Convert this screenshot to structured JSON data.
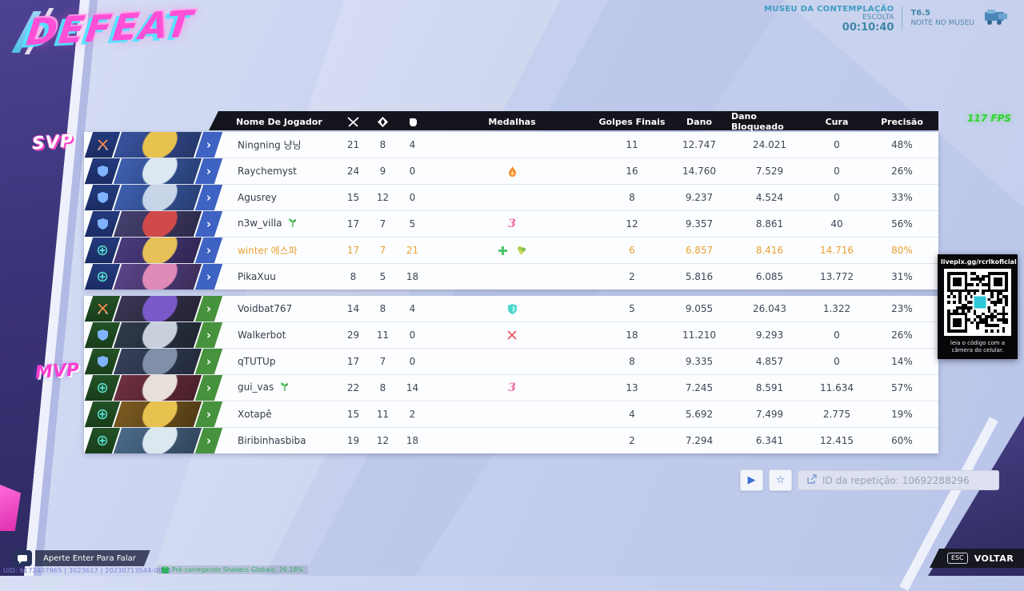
{
  "result_label": "DEFEAT",
  "hud": {
    "map_name": "MUSEU DA CONTEMPLAÇÃO",
    "mode": "ESCOLTA",
    "match_time": "00:10:40",
    "round": "T6.5",
    "round_name": "NOITE NO MUSEU",
    "fps": "117 FPS"
  },
  "awards": {
    "svp": "SVP",
    "mvp": "MVP"
  },
  "scoreboard": {
    "headers": {
      "player": "Nome De Jogador",
      "kills_icon": "crossed-swords",
      "deaths_icon": "broken-diamond",
      "assists_icon": "assist-hand",
      "medals": "Medalhas",
      "final_hits": "Golpes Finais",
      "damage": "Dano",
      "damage_blocked": "Dano Bloqueado",
      "healing": "Cura",
      "accuracy": "Precisão"
    },
    "teams": [
      {
        "id": "ally",
        "color": "blue",
        "rows": [
          {
            "name": "Ningning 냥닝",
            "has_seedling": false,
            "role": "duelist",
            "portrait": [
              "#38539e",
              "#e8c24f"
            ],
            "highlight": false,
            "medals": [],
            "stats": {
              "kills": "21",
              "deaths": "8",
              "assists": "4",
              "final_hits": "11",
              "damage": "12.747",
              "damage_blocked": "24.021",
              "healing": "0",
              "accuracy": "48%"
            }
          },
          {
            "name": "Raychemyst",
            "has_seedling": false,
            "role": "vanguard",
            "portrait": [
              "#3d5fae",
              "#dbe8f2"
            ],
            "highlight": false,
            "medals": [
              {
                "type": "flame"
              }
            ],
            "stats": {
              "kills": "24",
              "deaths": "9",
              "assists": "0",
              "final_hits": "16",
              "damage": "14.760",
              "damage_blocked": "7.529",
              "healing": "0",
              "accuracy": "26%"
            }
          },
          {
            "name": "Agusrey",
            "has_seedling": false,
            "role": "vanguard",
            "portrait": [
              "#3d5fae",
              "#c8d4e8"
            ],
            "highlight": false,
            "medals": [],
            "stats": {
              "kills": "15",
              "deaths": "12",
              "assists": "0",
              "final_hits": "8",
              "damage": "9.237",
              "damage_blocked": "4.524",
              "healing": "0",
              "accuracy": "33%"
            }
          },
          {
            "name": "n3w_villa",
            "has_seedling": true,
            "role": "vanguard",
            "portrait": [
              "#44406e",
              "#d04a4a"
            ],
            "highlight": false,
            "medals": [
              {
                "type": "pink-three",
                "text": "3"
              }
            ],
            "stats": {
              "kills": "17",
              "deaths": "7",
              "assists": "5",
              "final_hits": "12",
              "damage": "9.357",
              "damage_blocked": "8.861",
              "healing": "40",
              "accuracy": "56%"
            }
          },
          {
            "name": "winter 에스파",
            "has_seedling": false,
            "role": "strategist",
            "portrait": [
              "#4a3a7e",
              "#e8c05a"
            ],
            "highlight": true,
            "medals": [
              {
                "type": "green-cross"
              },
              {
                "type": "clover"
              }
            ],
            "stats": {
              "kills": "17",
              "deaths": "7",
              "assists": "21",
              "final_hits": "6",
              "damage": "6.857",
              "damage_blocked": "8.416",
              "healing": "14.716",
              "accuracy": "80%"
            }
          },
          {
            "name": "PikaXuu",
            "has_seedling": false,
            "role": "strategist",
            "portrait": [
              "#5a4488",
              "#e08ab8"
            ],
            "highlight": false,
            "medals": [],
            "stats": {
              "kills": "8",
              "deaths": "5",
              "assists": "18",
              "final_hits": "2",
              "damage": "5.816",
              "damage_blocked": "6.085",
              "healing": "13.772",
              "accuracy": "31%"
            }
          }
        ]
      },
      {
        "id": "enemy",
        "color": "green",
        "rows": [
          {
            "name": "Voidbat767",
            "has_seedling": false,
            "role": "duelist",
            "portrait": [
              "#3a3552",
              "#7a5ac8"
            ],
            "highlight": false,
            "medals": [
              {
                "type": "shield"
              }
            ],
            "stats": {
              "kills": "14",
              "deaths": "8",
              "assists": "4",
              "final_hits": "5",
              "damage": "9.055",
              "damage_blocked": "26.043",
              "healing": "1.322",
              "accuracy": "23%"
            }
          },
          {
            "name": "Walkerbot",
            "has_seedling": false,
            "role": "vanguard",
            "portrait": [
              "#2f3a4a",
              "#c8d0dc"
            ],
            "highlight": false,
            "medals": [
              {
                "type": "red-swords"
              }
            ],
            "stats": {
              "kills": "29",
              "deaths": "11",
              "assists": "0",
              "final_hits": "18",
              "damage": "11.210",
              "damage_blocked": "9.293",
              "healing": "0",
              "accuracy": "26%"
            }
          },
          {
            "name": "qTUTUp",
            "has_seedling": false,
            "role": "vanguard",
            "portrait": [
              "#35405a",
              "#8090a8"
            ],
            "highlight": false,
            "medals": [],
            "stats": {
              "kills": "17",
              "deaths": "7",
              "assists": "0",
              "final_hits": "8",
              "damage": "9.335",
              "damage_blocked": "4.857",
              "healing": "0",
              "accuracy": "14%"
            }
          },
          {
            "name": "gui_vas",
            "has_seedling": true,
            "role": "strategist",
            "portrait": [
              "#6e3040",
              "#e8e0d8"
            ],
            "highlight": false,
            "medals": [
              {
                "type": "pink-three",
                "text": "3"
              }
            ],
            "stats": {
              "kills": "22",
              "deaths": "8",
              "assists": "14",
              "final_hits": "13",
              "damage": "7.245",
              "damage_blocked": "8.591",
              "healing": "11.634",
              "accuracy": "57%"
            }
          },
          {
            "name": "Xotapê",
            "has_seedling": false,
            "role": "strategist",
            "portrait": [
              "#7a5a20",
              "#e8c24f"
            ],
            "highlight": false,
            "medals": [],
            "stats": {
              "kills": "15",
              "deaths": "11",
              "assists": "2",
              "final_hits": "4",
              "damage": "5.692",
              "damage_blocked": "7.499",
              "healing": "2.775",
              "accuracy": "19%"
            }
          },
          {
            "name": "Biribinhasbiba",
            "has_seedling": false,
            "role": "strategist",
            "portrait": [
              "#4a6a8a",
              "#dce8f0"
            ],
            "highlight": false,
            "medals": [],
            "stats": {
              "kills": "19",
              "deaths": "12",
              "assists": "18",
              "final_hits": "2",
              "damage": "7.294",
              "damage_blocked": "6.341",
              "healing": "12.415",
              "accuracy": "60%"
            }
          }
        ]
      }
    ]
  },
  "replay": {
    "id_label": "ID da repetição: 10692288296"
  },
  "qr": {
    "title": "livepix.gg/rcrlkoficial",
    "caption": "leia o código com a câmera do celular."
  },
  "chat_hint": "Aperte Enter Para Falar",
  "footer": {
    "uid_text": "UID: 6172407965 | 3023617 | 20230713544-0000",
    "shader_text": "Pré-carregando Shaders Globais: 26.18%"
  },
  "back": {
    "key": "ESC",
    "label": "VOLTAR"
  }
}
